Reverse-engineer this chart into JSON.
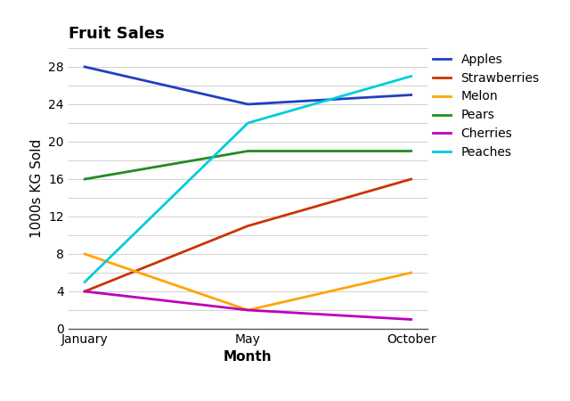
{
  "title": "Fruit Sales",
  "xlabel": "Month",
  "ylabel": "1000s KG Sold",
  "months": [
    "January",
    "May",
    "October"
  ],
  "series": [
    {
      "label": "Apples",
      "color": "#2040C0",
      "values": [
        28,
        24,
        25
      ]
    },
    {
      "label": "Strawberries",
      "color": "#CC3300",
      "values": [
        4,
        11,
        16
      ]
    },
    {
      "label": "Melon",
      "color": "#FFA500",
      "values": [
        8,
        2,
        6
      ]
    },
    {
      "label": "Pears",
      "color": "#228B22",
      "values": [
        16,
        19,
        19
      ]
    },
    {
      "label": "Cherries",
      "color": "#BB00BB",
      "values": [
        4,
        2,
        1
      ]
    },
    {
      "label": "Peaches",
      "color": "#00CCDD",
      "values": [
        5,
        22,
        27
      ]
    }
  ],
  "ylim": [
    0,
    30
  ],
  "yticks": [
    0,
    4,
    8,
    12,
    16,
    20,
    24,
    28
  ],
  "grid_yticks": [
    0,
    2,
    4,
    6,
    8,
    10,
    12,
    14,
    16,
    18,
    20,
    22,
    24,
    26,
    28,
    30
  ],
  "background_color": "#ffffff",
  "title_fontsize": 13,
  "label_fontsize": 11,
  "tick_fontsize": 10,
  "legend_fontsize": 10,
  "linewidth": 2.0
}
